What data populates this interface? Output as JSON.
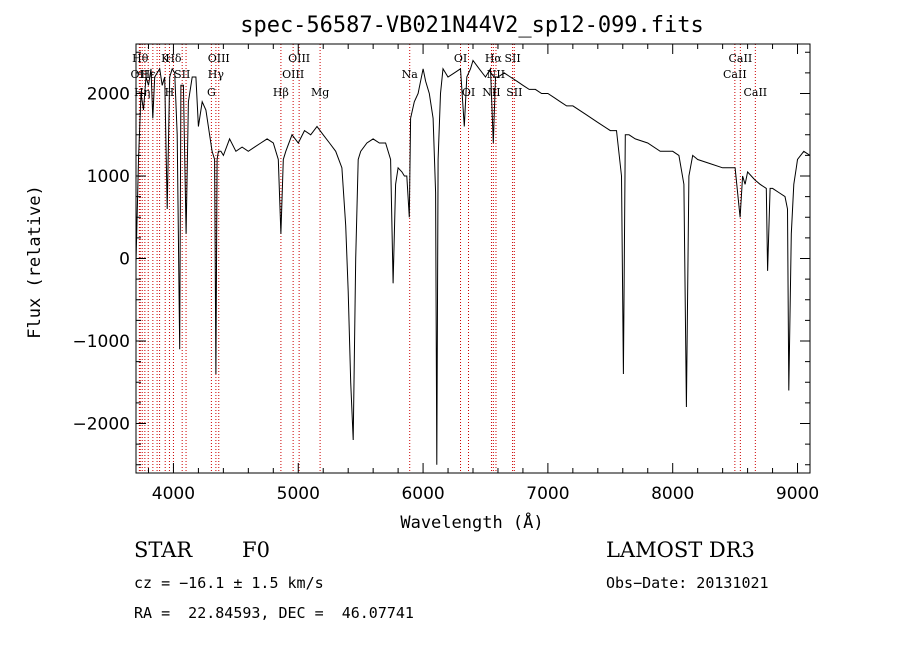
{
  "chart_data": {
    "type": "line",
    "title": "spec-56587-VB021N44V2_sp12-099.fits",
    "xlabel": "Wavelength (Å)",
    "ylabel": "Flux (relative)",
    "xlim": [
      3700,
      9100
    ],
    "ylim": [
      -2600,
      2600
    ],
    "xticks": [
      4000,
      5000,
      6000,
      7000,
      8000,
      9000
    ],
    "yticks": [
      -2000,
      -1000,
      0,
      1000,
      2000
    ],
    "x_tick_labels": [
      "4000",
      "5000",
      "6000",
      "7000",
      "8000",
      "9000"
    ],
    "y_tick_labels": [
      "−2000",
      "−1000",
      "0",
      "1000",
      "2000"
    ],
    "grid": false,
    "series": [
      {
        "x": [
          3700,
          3720,
          3740,
          3760,
          3780,
          3800,
          3820,
          3835,
          3850,
          3870,
          3890,
          3910,
          3930,
          3950,
          3970,
          3990,
          4010,
          4030,
          4050,
          4060,
          4080,
          4101,
          4120,
          4150,
          4180,
          4200,
          4230,
          4260,
          4290,
          4310,
          4330,
          4340,
          4350,
          4360,
          4380,
          4400,
          4450,
          4500,
          4550,
          4600,
          4650,
          4700,
          4750,
          4800,
          4840,
          4861,
          4880,
          4900,
          4950,
          5000,
          5050,
          5100,
          5150,
          5200,
          5250,
          5300,
          5350,
          5380,
          5400,
          5420,
          5440,
          5460,
          5480,
          5500,
          5550,
          5600,
          5650,
          5700,
          5740,
          5760,
          5780,
          5800,
          5830,
          5850,
          5870,
          5890,
          5900,
          5930,
          5960,
          6000,
          6020,
          6050,
          6080,
          6100,
          6110,
          6120,
          6140,
          6160,
          6200,
          6250,
          6300,
          6330,
          6350,
          6380,
          6400,
          6450,
          6500,
          6540,
          6563,
          6580,
          6600,
          6650,
          6700,
          6750,
          6800,
          6850,
          6900,
          6950,
          7000,
          7050,
          7100,
          7150,
          7200,
          7300,
          7400,
          7500,
          7550,
          7590,
          7605,
          7620,
          7650,
          7700,
          7800,
          7900,
          8000,
          8050,
          8090,
          8110,
          8130,
          8160,
          8200,
          8300,
          8400,
          8450,
          8500,
          8540,
          8560,
          8580,
          8600,
          8630,
          8660,
          8700,
          8750,
          8760,
          8780,
          8800,
          8850,
          8900,
          8920,
          8930,
          8950,
          8970,
          8990,
          9000,
          9050,
          9100
        ],
        "y": [
          -50,
          1200,
          2000,
          1800,
          2200,
          2100,
          2300,
          1700,
          2200,
          2250,
          2300,
          2100,
          2200,
          600,
          2200,
          2300,
          2250,
          1500,
          -1100,
          2100,
          2100,
          300,
          1900,
          2200,
          2200,
          1600,
          1900,
          1800,
          1500,
          1300,
          1200,
          -1400,
          1200,
          1300,
          1300,
          1250,
          1450,
          1300,
          1350,
          1300,
          1350,
          1400,
          1450,
          1400,
          1200,
          300,
          1200,
          1300,
          1500,
          1400,
          1550,
          1500,
          1600,
          1500,
          1400,
          1300,
          1100,
          400,
          -400,
          -1500,
          -2200,
          0,
          1200,
          1300,
          1400,
          1450,
          1400,
          1400,
          1200,
          -300,
          900,
          1100,
          1050,
          1000,
          1000,
          500,
          1700,
          1900,
          2000,
          2300,
          2150,
          2000,
          1700,
          800,
          -2500,
          1200,
          2000,
          2300,
          2200,
          2250,
          2300,
          1600,
          2200,
          2300,
          2400,
          2300,
          2200,
          2300,
          1400,
          2200,
          2200,
          2250,
          2200,
          2150,
          2100,
          2050,
          2050,
          2000,
          2000,
          1950,
          1900,
          1850,
          1850,
          1750,
          1650,
          1550,
          1550,
          1000,
          -1400,
          1500,
          1500,
          1450,
          1400,
          1300,
          1300,
          1250,
          900,
          -1800,
          1000,
          1250,
          1200,
          1150,
          1100,
          1100,
          1100,
          500,
          1000,
          900,
          1050,
          1000,
          950,
          900,
          850,
          -150,
          850,
          850,
          800,
          750,
          600,
          -1600,
          300,
          900,
          1100,
          1200,
          1300,
          1250
        ]
      }
    ],
    "lines": [
      {
        "wavelength": 3734,
        "label": "Hθ",
        "row": 0
      },
      {
        "wavelength": 3727,
        "label": "OII",
        "row": 1
      },
      {
        "wavelength": 3750,
        "label": "Hη",
        "row": 2
      },
      {
        "wavelength": 3771,
        "label": "",
        "row": 2
      },
      {
        "wavelength": 3798,
        "label": "Hε",
        "row": 1
      },
      {
        "wavelength": 3835,
        "label": "",
        "row": 1
      },
      {
        "wavelength": 3869,
        "label": "",
        "row": 1
      },
      {
        "wavelength": 3889,
        "label": "",
        "row": 1
      },
      {
        "wavelength": 3934,
        "label": "K",
        "row": 0
      },
      {
        "wavelength": 3968,
        "label": "H",
        "row": 2
      },
      {
        "wavelength": 4000,
        "label": "Hδ",
        "row": 0
      },
      {
        "wavelength": 4070,
        "label": "SII",
        "row": 1
      },
      {
        "wavelength": 4101,
        "label": "",
        "row": 1
      },
      {
        "wavelength": 4304,
        "label": "G",
        "row": 2
      },
      {
        "wavelength": 4340,
        "label": "Hγ",
        "row": 1
      },
      {
        "wavelength": 4363,
        "label": "OIII",
        "row": 0
      },
      {
        "wavelength": 4861,
        "label": "Hβ",
        "row": 2
      },
      {
        "wavelength": 4959,
        "label": "OIII",
        "row": 1
      },
      {
        "wavelength": 5007,
        "label": "OIII",
        "row": 0
      },
      {
        "wavelength": 5175,
        "label": "Mg",
        "row": 2
      },
      {
        "wavelength": 5893,
        "label": "Na",
        "row": 1
      },
      {
        "wavelength": 6300,
        "label": "OI",
        "row": 0
      },
      {
        "wavelength": 6364,
        "label": "OI",
        "row": 2
      },
      {
        "wavelength": 6548,
        "label": "NII",
        "row": 2
      },
      {
        "wavelength": 6563,
        "label": "Hα",
        "row": 0
      },
      {
        "wavelength": 6584,
        "label": "NII",
        "row": 1
      },
      {
        "wavelength": 6717,
        "label": "SII",
        "row": 0
      },
      {
        "wavelength": 6731,
        "label": "SII",
        "row": 2
      },
      {
        "wavelength": 8498,
        "label": "CaII",
        "row": 1
      },
      {
        "wavelength": 8542,
        "label": "CaII",
        "row": 0
      },
      {
        "wavelength": 8662,
        "label": "CaII",
        "row": 2
      }
    ]
  },
  "info": {
    "object_class": "STAR",
    "subclass": "F0",
    "survey": "LAMOST DR3",
    "cz": "cz = −16.1 ± 1.5 km/s",
    "obs_date": "Obs−Date: 20131021",
    "coords": "RA =  22.84593, DEC =  46.07741"
  }
}
